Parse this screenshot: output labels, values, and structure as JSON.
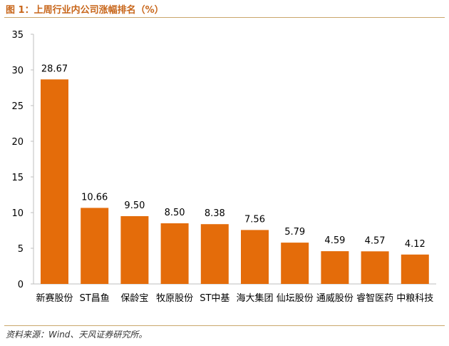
{
  "header": {
    "title": "图 1：上周行业内公司涨幅排名（%）"
  },
  "footer": {
    "source": "资料来源：Wind、天风证券研究所。"
  },
  "colors": {
    "bar": "#E46C0A",
    "accent": "#C8661A",
    "rule": "#C9A66B"
  },
  "chart_data": {
    "type": "bar",
    "title": "上周行业内公司涨幅排名（%）",
    "xlabel": "",
    "ylabel": "%",
    "ylim": [
      0,
      35
    ],
    "yticks": [
      0,
      5,
      10,
      15,
      20,
      25,
      30,
      35
    ],
    "grid": false,
    "categories": [
      "新赛股份",
      "ST昌鱼",
      "保龄宝",
      "牧原股份",
      "ST中基",
      "海大集团",
      "仙坛股份",
      "通威股份",
      "睿智医药",
      "中粮科技"
    ],
    "values": [
      28.67,
      10.66,
      9.5,
      8.5,
      8.38,
      7.56,
      5.79,
      4.59,
      4.57,
      4.12
    ],
    "value_labels": [
      "28.67",
      "10.66",
      "9.50",
      "8.50",
      "8.38",
      "7.56",
      "5.79",
      "4.59",
      "4.57",
      "4.12"
    ]
  }
}
